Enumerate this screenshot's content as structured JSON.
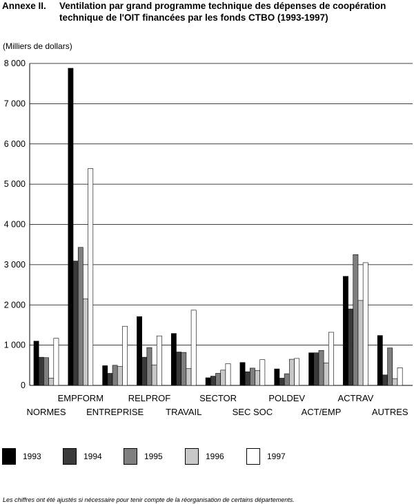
{
  "header": {
    "annex": "Annexe II.",
    "title": "Ventilation par grand programme technique des dépenses de coopération technique de l'OIT financées par les fonds CTBO (1993-1997)"
  },
  "unit_label": "(Milliers de dollars)",
  "footnote": "Les chiffres ont été ajustés si nécessaire pour tenir compte de la réorganisation de certains départements.",
  "colors": {
    "1993": "#000000",
    "1994": "#3a3a3a",
    "1995": "#7f7f7f",
    "1996": "#c8c8c8",
    "1997": "#ffffff"
  },
  "chart_data": {
    "type": "bar",
    "categories": [
      "NORMES",
      "EMPFORM",
      "ENTREPRISE",
      "RELPROF",
      "TRAVAIL",
      "SECTOR",
      "SEC SOC",
      "POLDEV",
      "ACT/EMP",
      "ACTRAV",
      "AUTRES"
    ],
    "series": [
      {
        "name": "1993",
        "values": [
          1100,
          7880,
          490,
          1710,
          1290,
          190,
          570,
          410,
          810,
          2710,
          1240
        ]
      },
      {
        "name": "1994",
        "values": [
          700,
          3090,
          300,
          700,
          830,
          230,
          340,
          180,
          810,
          1900,
          260
        ]
      },
      {
        "name": "1995",
        "values": [
          690,
          3430,
          500,
          940,
          820,
          300,
          430,
          290,
          870,
          3250,
          930
        ]
      },
      {
        "name": "1996",
        "values": [
          180,
          2150,
          470,
          510,
          420,
          380,
          370,
          650,
          560,
          2110,
          170
        ]
      },
      {
        "name": "1997",
        "values": [
          1170,
          5390,
          1470,
          1230,
          1870,
          540,
          640,
          670,
          1320,
          3050,
          440
        ]
      }
    ],
    "yticks": [
      "0",
      "1 000",
      "2 000",
      "3 000",
      "4 000",
      "5 000",
      "6 000",
      "7 000",
      "8 000"
    ],
    "ylim": [
      0,
      8000
    ],
    "grid": true,
    "legend_position": "bottom"
  }
}
